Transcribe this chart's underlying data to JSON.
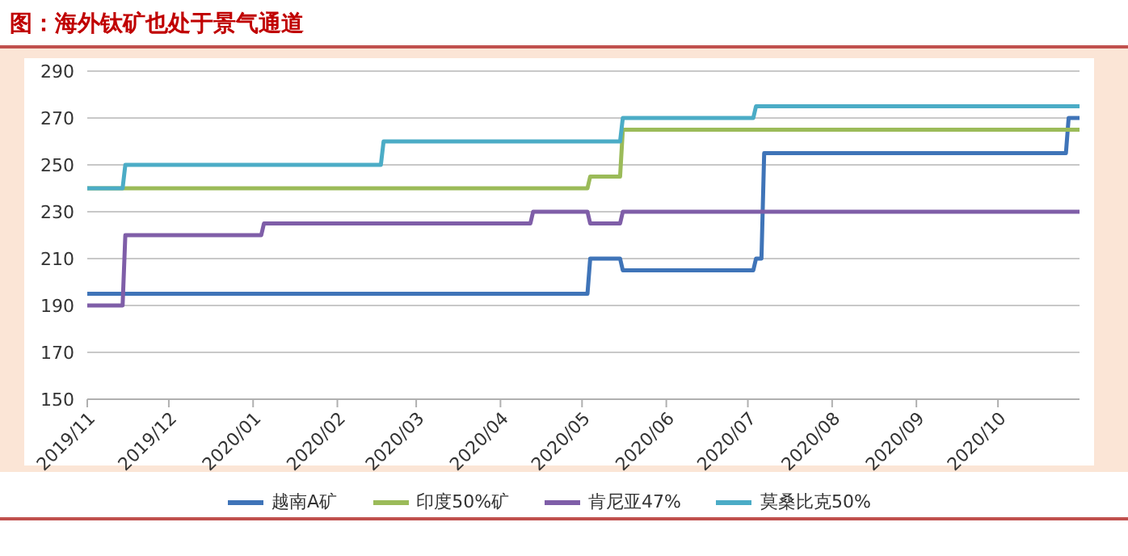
{
  "chart_data": {
    "type": "line",
    "title": "图：海外钛矿也处于景气通道",
    "xlim": [
      "2019-11-01",
      "2020-10-31"
    ],
    "xticks": [
      {
        "value": "2019-11-01",
        "label": "2019/11"
      },
      {
        "value": "2019-12-01",
        "label": "2019/12"
      },
      {
        "value": "2020-01-01",
        "label": "2020/01"
      },
      {
        "value": "2020-02-01",
        "label": "2020/02"
      },
      {
        "value": "2020-03-01",
        "label": "2020/03"
      },
      {
        "value": "2020-04-01",
        "label": "2020/04"
      },
      {
        "value": "2020-05-01",
        "label": "2020/05"
      },
      {
        "value": "2020-06-01",
        "label": "2020/06"
      },
      {
        "value": "2020-07-01",
        "label": "2020/07"
      },
      {
        "value": "2020-08-01",
        "label": "2020/08"
      },
      {
        "value": "2020-09-01",
        "label": "2020/09"
      },
      {
        "value": "2020-10-01",
        "label": "2020/10"
      }
    ],
    "ylim": [
      150,
      290
    ],
    "yticks": [
      150,
      170,
      190,
      210,
      230,
      250,
      270,
      290
    ],
    "grid": "y",
    "legend": "bottom",
    "marker": "none",
    "line_style": "solid",
    "series": [
      {
        "name": "越南A矿",
        "color": "#3f74b8",
        "x": [
          "2019-11-01",
          "2020-05-03",
          "2020-05-04",
          "2020-05-15",
          "2020-05-16",
          "2020-07-03",
          "2020-07-04",
          "2020-07-06",
          "2020-07-07",
          "2020-10-26",
          "2020-10-27",
          "2020-10-31"
        ],
        "values": [
          195,
          195,
          210,
          210,
          205,
          205,
          210,
          210,
          255,
          255,
          270,
          270
        ]
      },
      {
        "name": "印度50%矿",
        "color": "#9bbb59",
        "x": [
          "2019-11-01",
          "2020-05-03",
          "2020-05-04",
          "2020-05-15",
          "2020-05-16",
          "2020-10-31"
        ],
        "values": [
          240,
          240,
          245,
          245,
          265,
          265
        ]
      },
      {
        "name": "肯尼亚47%",
        "color": "#7f5ea8",
        "x": [
          "2019-11-01",
          "2019-11-14",
          "2019-11-15",
          "2020-01-04",
          "2020-01-05",
          "2020-04-12",
          "2020-04-13",
          "2020-05-03",
          "2020-05-04",
          "2020-05-15",
          "2020-05-16",
          "2020-10-31"
        ],
        "values": [
          190,
          190,
          220,
          220,
          225,
          225,
          230,
          230,
          225,
          225,
          230,
          230
        ]
      },
      {
        "name": "莫桑比克50%",
        "color": "#4bacc6",
        "x": [
          "2019-11-01",
          "2019-11-14",
          "2019-11-15",
          "2020-02-17",
          "2020-02-18",
          "2020-05-15",
          "2020-05-16",
          "2020-07-03",
          "2020-07-04",
          "2020-10-31"
        ],
        "values": [
          240,
          240,
          250,
          250,
          260,
          260,
          270,
          270,
          275,
          275
        ]
      }
    ]
  }
}
